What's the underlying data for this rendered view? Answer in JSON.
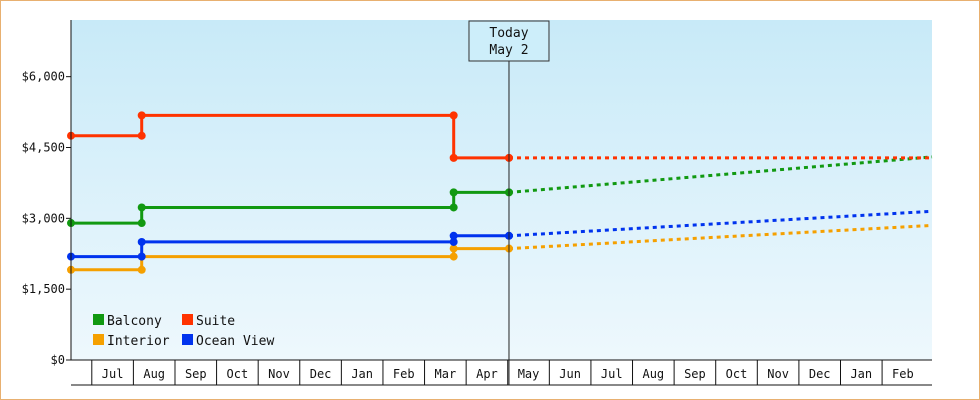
{
  "chart_data": {
    "type": "line",
    "title": "",
    "xlabel": "",
    "ylabel": "",
    "ylim": [
      0,
      7200
    ],
    "y_ticks": [
      {
        "value": 0,
        "label": "$0"
      },
      {
        "value": 1500,
        "label": "$1,500"
      },
      {
        "value": 3000,
        "label": "$3,000"
      },
      {
        "value": 4500,
        "label": "$4,500"
      },
      {
        "value": 6000,
        "label": "$6,000"
      }
    ],
    "months": [
      "Jul",
      "Aug",
      "Sep",
      "Oct",
      "Nov",
      "Dec",
      "Jan",
      "Feb",
      "Mar",
      "Apr",
      "May",
      "Jun",
      "Jul",
      "Aug",
      "Sep",
      "Oct",
      "Nov",
      "Dec",
      "Jan",
      "Feb"
    ],
    "x_start_month": -0.5,
    "x_end_month": 20.2,
    "today": {
      "line1": "Today",
      "line2": "May 2",
      "month": 10.03
    },
    "legend_placement": "bottom-left",
    "grid": false,
    "series": [
      {
        "name": "Balcony",
        "color": "#119911",
        "history": [
          [
            -0.5,
            2900
          ],
          [
            1.2,
            2900
          ],
          [
            1.2,
            3230
          ],
          [
            8.7,
            3230
          ],
          [
            8.7,
            3550
          ],
          [
            10.03,
            3550
          ]
        ],
        "forecast": [
          [
            10.03,
            3550
          ],
          [
            20.2,
            4300
          ]
        ]
      },
      {
        "name": "Suite",
        "color": "#ff3300",
        "history": [
          [
            -0.5,
            4750
          ],
          [
            1.2,
            4750
          ],
          [
            1.2,
            5180
          ],
          [
            8.7,
            5180
          ],
          [
            8.7,
            4280
          ],
          [
            10.03,
            4280
          ]
        ],
        "forecast": [
          [
            10.03,
            4280
          ],
          [
            20.2,
            4280
          ]
        ]
      },
      {
        "name": "Interior",
        "color": "#f5a000",
        "history": [
          [
            -0.5,
            1910
          ],
          [
            1.2,
            1910
          ],
          [
            1.2,
            2190
          ],
          [
            8.7,
            2190
          ],
          [
            8.7,
            2360
          ],
          [
            10.03,
            2360
          ]
        ],
        "forecast": [
          [
            10.03,
            2360
          ],
          [
            20.2,
            2850
          ]
        ]
      },
      {
        "name": "Ocean View",
        "color": "#0033ee",
        "history": [
          [
            -0.5,
            2190
          ],
          [
            1.2,
            2190
          ],
          [
            1.2,
            2500
          ],
          [
            8.7,
            2500
          ],
          [
            8.7,
            2630
          ],
          [
            10.03,
            2630
          ]
        ],
        "forecast": [
          [
            10.03,
            2630
          ],
          [
            20.2,
            3150
          ]
        ]
      }
    ]
  }
}
